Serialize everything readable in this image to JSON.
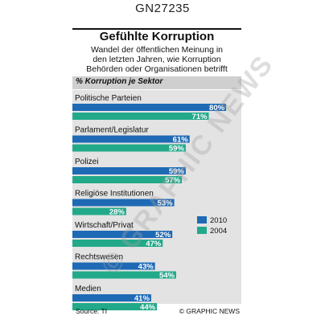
{
  "code": "GN27235",
  "title": "Gefühlte Korruption",
  "subtitle": "Wandel der öffentlichen Meinung in\nden letzten Jahren, wie Korruption\nBehörden oder Organisationen betrifft",
  "section_title": "% Korruption je Sektor",
  "source": "Source: TI",
  "credit": "© GRAPHIC NEWS",
  "watermark": "© GRAPHIC NEWS",
  "colors": {
    "2010": "#1e6ab5",
    "2004": "#22a98a",
    "background": "#e3e3e3"
  },
  "chart_data": {
    "type": "bar",
    "orientation": "horizontal",
    "title": "Gefühlte Korruption",
    "xlabel": "% Korruption je Sektor",
    "ylabel": "",
    "xlim": [
      0,
      85
    ],
    "categories": [
      "Politische Parteien",
      "Parlament/Legislatur",
      "Polizei",
      "Religiöse Institutionen",
      "Wirtschaft/Privat",
      "Rechtswesen",
      "Medien"
    ],
    "series": [
      {
        "name": "2010",
        "values": [
          80,
          61,
          59,
          53,
          52,
          43,
          41
        ],
        "labels": [
          "80%",
          "61%",
          "59%",
          "53%",
          "52%",
          "43%",
          "41%"
        ]
      },
      {
        "name": "2004",
        "values": [
          71,
          59,
          57,
          28,
          47,
          54,
          44
        ],
        "labels": [
          "71%",
          "59%",
          "57%",
          "28%",
          "47%",
          "54%",
          "44%"
        ]
      }
    ],
    "legend": [
      "2010",
      "2004"
    ],
    "legend_position": "right",
    "grid": false
  }
}
